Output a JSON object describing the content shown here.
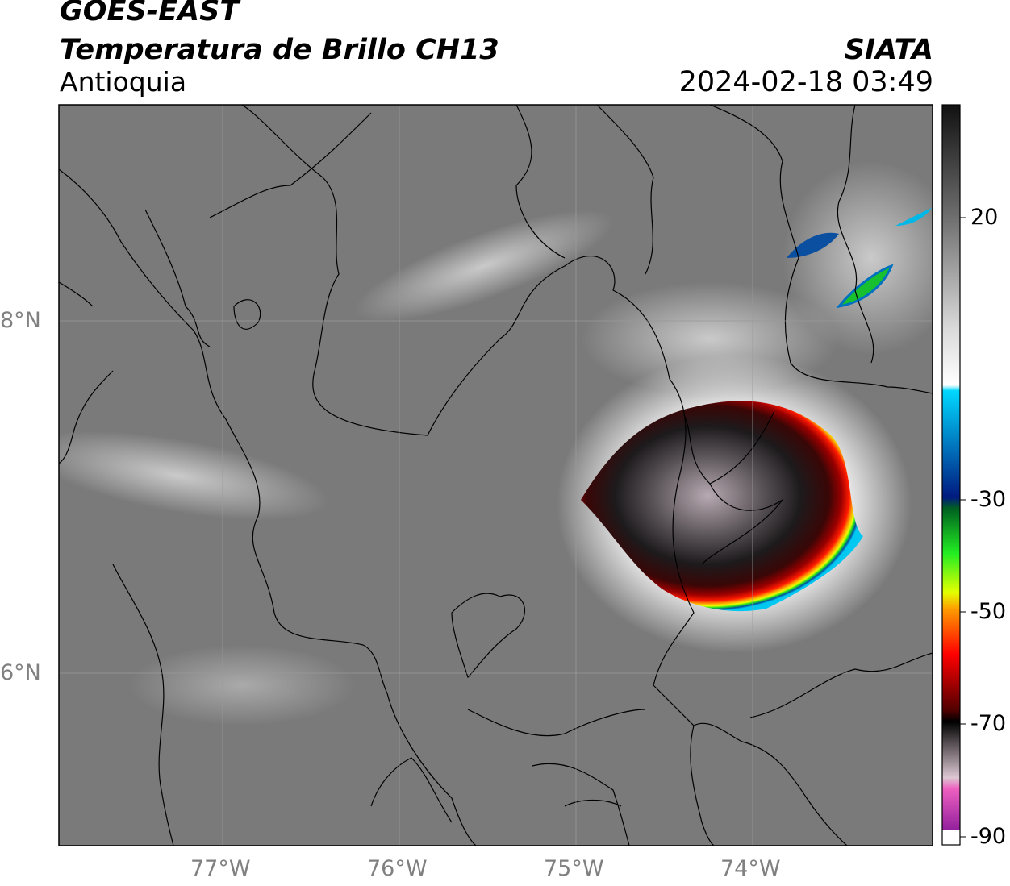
{
  "header": {
    "satellite": "GOES-EAST",
    "product": "Temperatura de Brillo CH13",
    "region": "Antioquia",
    "organization": "SIATA",
    "timestamp": "2024-02-18 03:49"
  },
  "map": {
    "lat_labels": [
      "8°N",
      "6°N"
    ],
    "lon_labels": [
      "77°W",
      "76°W",
      "75°W",
      "74°W"
    ],
    "background_color": "#7a7a7a",
    "border_color": "#000000",
    "gridline_color": "#9a9a9a"
  },
  "colorbar": {
    "tick_labels": [
      "20",
      "-30",
      "-50",
      "-70",
      "-90"
    ],
    "stops": [
      {
        "value": 40,
        "color": "#111111"
      },
      {
        "value": 20,
        "color": "#6e6e6e"
      },
      {
        "value": 0,
        "color": "#dadada"
      },
      {
        "value": -10,
        "color": "#ffffff"
      },
      {
        "value": -11,
        "color": "#00d8ff"
      },
      {
        "value": -30,
        "color": "#001a80"
      },
      {
        "value": -32,
        "color": "#006020"
      },
      {
        "value": -40,
        "color": "#22ee22"
      },
      {
        "value": -47,
        "color": "#e4ff00"
      },
      {
        "value": -50,
        "color": "#ff9a00"
      },
      {
        "value": -58,
        "color": "#ff0000"
      },
      {
        "value": -68,
        "color": "#500000"
      },
      {
        "value": -70,
        "color": "#000000"
      },
      {
        "value": -80,
        "color": "#dcc8d2"
      },
      {
        "value": -82,
        "color": "#ee60c0"
      },
      {
        "value": -90,
        "color": "#8a1a9a"
      }
    ]
  }
}
